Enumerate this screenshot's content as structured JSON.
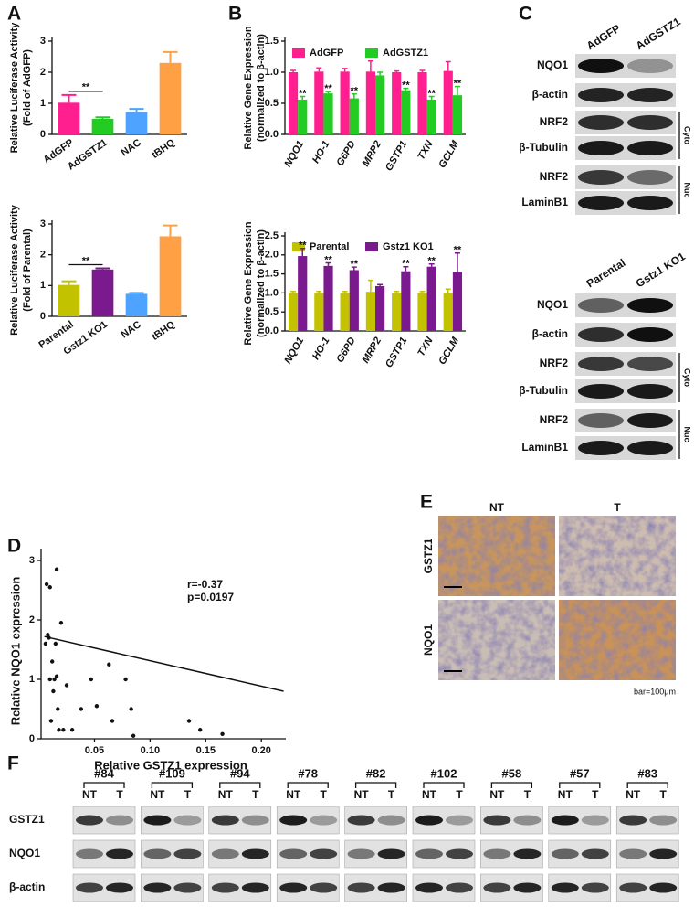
{
  "panel_labels": [
    "A",
    "B",
    "C",
    "D",
    "E",
    "F"
  ],
  "chart_data": [
    {
      "type": "bar",
      "ylabel": [
        "Relative Luciferase Activity",
        "(Fold of AdGFP)"
      ],
      "categories": [
        "AdGFP",
        "AdGSTZ1",
        "NAC",
        "tBHQ"
      ],
      "values": [
        1.02,
        0.5,
        0.72,
        2.3
      ],
      "errors": [
        0.25,
        0.05,
        0.1,
        0.35
      ],
      "colors": [
        "#ff1f8f",
        "#22cc22",
        "#4da3ff",
        "#ffa044"
      ],
      "ylim": [
        0,
        3
      ],
      "yticks": [
        0,
        1,
        2,
        3
      ],
      "annotations": [
        "**"
      ]
    },
    {
      "type": "bar",
      "ylabel": [
        "Relative Luciferase Activity",
        "(Fold of Parental)"
      ],
      "categories": [
        "Parental",
        "Gstz1 KO1",
        "NAC",
        "tBHQ"
      ],
      "values": [
        1.02,
        1.52,
        0.73,
        2.6
      ],
      "errors": [
        0.12,
        0.04,
        0.03,
        0.35
      ],
      "colors": [
        "#c2c200",
        "#7b1a8e",
        "#4da3ff",
        "#ffa044"
      ],
      "ylim": [
        0,
        3
      ],
      "yticks": [
        0,
        1,
        2,
        3
      ],
      "annotations": [
        "**"
      ]
    },
    {
      "type": "bar",
      "ylabel": [
        "Relative Gene Expression",
        "(normalized to β-actin)"
      ],
      "categories": [
        "NQO1",
        "HO-1",
        "G6PD",
        "MRP2",
        "GSTP1",
        "TXN",
        "GCLM"
      ],
      "series": [
        {
          "name": "AdGFP",
          "color": "#ff1f8f",
          "values": [
            1.0,
            1.01,
            1.01,
            1.01,
            1.0,
            1.0,
            1.02
          ],
          "errors": [
            0.03,
            0.06,
            0.05,
            0.17,
            0.02,
            0.03,
            0.15
          ]
        },
        {
          "name": "AdGSTZ1",
          "color": "#22cc22",
          "values": [
            0.56,
            0.66,
            0.58,
            0.95,
            0.71,
            0.56,
            0.63
          ],
          "errors": [
            0.05,
            0.03,
            0.07,
            0.05,
            0.03,
            0.05,
            0.14
          ]
        }
      ],
      "marker_labels": [
        "**",
        "**",
        "**",
        null,
        "**",
        "**",
        "**"
      ],
      "ylim": [
        0,
        1.5
      ],
      "yticks": [
        {
          "value": 0,
          "label": "0.0"
        },
        0.5,
        {
          "value": 1,
          "label": "1.0"
        },
        1.5
      ]
    },
    {
      "type": "bar",
      "ylabel": [
        "Relative Gene Expression",
        "(normalized to β-actin)"
      ],
      "categories": [
        "NQO1",
        "HO-1",
        "G6PD",
        "MRP2",
        "GSTP1",
        "TXN",
        "GCLM"
      ],
      "series": [
        {
          "name": "Parental",
          "color": "#c2c200",
          "values": [
            1.0,
            1.0,
            1.0,
            1.03,
            1.0,
            1.0,
            1.0
          ],
          "errors": [
            0.04,
            0.04,
            0.04,
            0.3,
            0.04,
            0.04,
            0.1
          ]
        },
        {
          "name": "Gstz1 KO1",
          "color": "#7b1a8e",
          "values": [
            1.97,
            1.71,
            1.6,
            1.18,
            1.57,
            1.69,
            1.55
          ],
          "errors": [
            0.2,
            0.08,
            0.08,
            0.04,
            0.12,
            0.07,
            0.5
          ]
        }
      ],
      "marker_labels": [
        "**",
        "**",
        "**",
        null,
        "**",
        "**",
        "**"
      ],
      "ylim": [
        0,
        2.5
      ],
      "yticks": [
        {
          "value": 0,
          "label": "0.0"
        },
        0.5,
        {
          "value": 1,
          "label": "1.0"
        },
        1.5,
        {
          "value": 2,
          "label": "2.0"
        },
        2.5
      ]
    },
    {
      "type": "scatter",
      "xlabel": "Relative GSTZ1 expression",
      "ylabel": "Relative NQO1 expression",
      "x": [
        0.006,
        0.007,
        0.008,
        0.009,
        0.01,
        0.01,
        0.011,
        0.012,
        0.013,
        0.014,
        0.015,
        0.016,
        0.016,
        0.017,
        0.018,
        0.02,
        0.022,
        0.025,
        0.03,
        0.038,
        0.047,
        0.052,
        0.063,
        0.066,
        0.078,
        0.083,
        0.085,
        0.135,
        0.145,
        0.165
      ],
      "y": [
        1.6,
        2.6,
        1.75,
        1.7,
        2.55,
        1.0,
        0.3,
        1.3,
        0.8,
        1.0,
        1.6,
        2.85,
        1.05,
        0.5,
        0.15,
        1.95,
        0.15,
        0.9,
        0.15,
        0.5,
        1.0,
        0.55,
        1.25,
        0.3,
        1.0,
        0.5,
        0.05,
        0.3,
        0.15,
        0.08
      ],
      "fit": {
        "x": [
          0.005,
          0.22
        ],
        "y": [
          1.72,
          0.8
        ]
      },
      "annotations": [
        "r=-0.37",
        "p=0.0197"
      ],
      "xlim": [
        0.002,
        0.222
      ],
      "ylim": [
        0,
        3.2
      ],
      "xticks": [
        0.05,
        {
          "value": 0.1,
          "label": "0.10"
        },
        0.15,
        {
          "value": 0.2,
          "label": "0.20"
        }
      ],
      "yticks": [
        0,
        1,
        2,
        3
      ]
    }
  ],
  "blots_c": [
    {
      "headers": [
        "AdGFP",
        "AdGSTZ1"
      ],
      "rows": [
        "NQO1",
        "β-actin",
        "NRF2",
        "β-Tubulin",
        "NRF2",
        "LaminB1"
      ],
      "brackets": [
        "Cyto",
        "Nuc"
      ]
    },
    {
      "headers": [
        "Parental",
        "Gstz1 KO1"
      ],
      "rows": [
        "NQO1",
        "β-actin",
        "NRF2",
        "β-Tubulin",
        "NRF2",
        "LaminB1"
      ],
      "brackets": [
        "Cyto",
        "Nuc"
      ]
    }
  ],
  "histology": {
    "columns": [
      "NT",
      "T"
    ],
    "rows": [
      "GSTZ1",
      "NQO1"
    ],
    "scale": "bar=100μm"
  },
  "patient_blots": {
    "samples": [
      "#84",
      "#109",
      "#94",
      "#78",
      "#82",
      "#102",
      "#58",
      "#57",
      "#83"
    ],
    "lanes": [
      "NT",
      "T"
    ],
    "rows": [
      "GSTZ1",
      "NQO1",
      "β-actin"
    ]
  }
}
